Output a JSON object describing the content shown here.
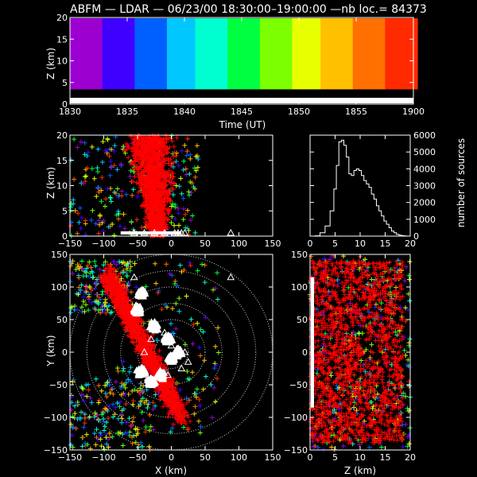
{
  "title": "ABFM — LDAR — 06/23/00 18:30:00–19:00:00 —nb loc.=  84373",
  "colors": {
    "background": "#000000",
    "foreground": "#ffffff",
    "dense_red": "#ff0000",
    "circles": "#cfcfcf"
  },
  "icons": [
    "triangle-station-marker",
    "diamond-station-marker",
    "plus-marker"
  ],
  "chart_data": [
    {
      "id": "time-height",
      "type": "scatter",
      "xlabel": "Time (UT)",
      "ylabel": "Z (km)",
      "xlim": [
        1830,
        1900
      ],
      "ylim": [
        0,
        20
      ],
      "xticks": [
        "1830",
        "1835",
        "1840",
        "1845",
        "1850",
        "1855",
        "1900"
      ],
      "yticks": [
        "0",
        "5",
        "10",
        "15",
        "20"
      ],
      "color_by": "time",
      "color_scale": "purple-blue-cyan-green-yellow-orange-red",
      "note_values": "sources spread over 18:30-19:00 UT at heights 0-20 km"
    },
    {
      "id": "x-height",
      "type": "scatter",
      "xlabel": "",
      "ylabel": "Z (km)",
      "xlim": [
        -150,
        150
      ],
      "ylim": [
        0,
        20
      ],
      "xticks": [
        "−150",
        "−100",
        "−50",
        "0",
        "50",
        "100",
        "150"
      ],
      "yticks": [
        "0",
        "5",
        "10",
        "15",
        "20"
      ],
      "main_cloud": {
        "x_range": [
          -60,
          25
        ],
        "z_range": [
          0,
          20
        ]
      },
      "stations_x": [
        -55,
        -40,
        -25,
        -10,
        5,
        10,
        15,
        20,
        88
      ]
    },
    {
      "id": "histogram",
      "type": "line",
      "xlabel": "",
      "ylabel": "number of sources",
      "xlim": [
        0,
        20
      ],
      "ylim": [
        0,
        6000
      ],
      "xticks": [
        "0",
        "5",
        "10",
        "15",
        "20"
      ],
      "yticks": [
        "0",
        "1000",
        "2000",
        "3000",
        "4000",
        "5000",
        "6000"
      ],
      "x": [
        0.5,
        1.5,
        2.5,
        3.5,
        4.5,
        5,
        5.5,
        6,
        6.5,
        7,
        7.5,
        8,
        8.5,
        9,
        9.5,
        10,
        10.5,
        11,
        11.5,
        12,
        12.5,
        13,
        13.5,
        14,
        14.5,
        15,
        15.5,
        16,
        16.5,
        17,
        17.5,
        18,
        18.5,
        19,
        19.5
      ],
      "values": [
        0,
        20,
        200,
        600,
        1500,
        2800,
        4200,
        5600,
        5700,
        5400,
        4700,
        3700,
        3600,
        3900,
        4000,
        3900,
        3600,
        3300,
        3100,
        2900,
        2500,
        2200,
        1800,
        1500,
        1200,
        900,
        700,
        500,
        300,
        200,
        100,
        60,
        30,
        10,
        0
      ]
    },
    {
      "id": "plan-view",
      "type": "scatter",
      "xlabel": "X (km)",
      "ylabel": "Y (km)",
      "xlim": [
        -150,
        150
      ],
      "ylim": [
        -150,
        150
      ],
      "xticks": [
        "−150",
        "−100",
        "−50",
        "0",
        "50",
        "100",
        "150"
      ],
      "yticks": [
        "−150",
        "−100",
        "−50",
        "0",
        "50",
        "100",
        "150"
      ],
      "range_circles_km": [
        25,
        50,
        75,
        100,
        125,
        150
      ],
      "stations": [
        {
          "x": -40,
          "y": 0
        },
        {
          "x": -30,
          "y": 20
        },
        {
          "x": -10,
          "y": 30
        },
        {
          "x": 0,
          "y": 10
        },
        {
          "x": 10,
          "y": 5
        },
        {
          "x": 20,
          "y": 0
        },
        {
          "x": 25,
          "y": -15
        },
        {
          "x": 15,
          "y": -25
        },
        {
          "x": -5,
          "y": -35
        },
        {
          "x": -35,
          "y": -40
        },
        {
          "x": 88,
          "y": 115
        },
        {
          "x": -55,
          "y": 115
        }
      ]
    },
    {
      "id": "z-y",
      "type": "scatter",
      "xlabel": "Z (km)",
      "ylabel": "",
      "xlim": [
        0,
        20
      ],
      "ylim": [
        -150,
        150
      ],
      "xticks": [
        "0",
        "5",
        "10",
        "15",
        "20"
      ],
      "yticks": [
        "−150",
        "−100",
        "−50",
        "0",
        "50",
        "100",
        "150"
      ]
    }
  ]
}
